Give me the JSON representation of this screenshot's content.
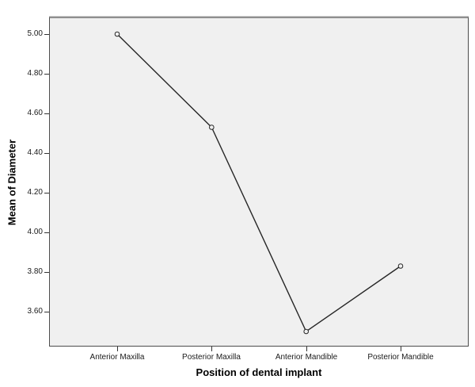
{
  "chart_data": {
    "type": "line",
    "title": "",
    "xlabel": "Position of dental implant",
    "ylabel": "Mean of Diameter",
    "categories": [
      "Anterior Maxilla",
      "Posterior Maxilla",
      "Anterior Mandible",
      "Posterior Mandible"
    ],
    "values": [
      5.0,
      4.53,
      3.5,
      3.83
    ],
    "ytick_labels": [
      "5.00",
      "4.80",
      "4.60",
      "4.40",
      "4.20",
      "4.00",
      "3.80",
      "3.60"
    ],
    "ytick_values": [
      5.0,
      4.8,
      4.6,
      4.4,
      4.2,
      4.0,
      3.8,
      3.6
    ],
    "ylim": [
      3.428,
      5.08
    ],
    "grid": false,
    "legend": "none",
    "colors": {
      "plot_bg": "#f0f0f0",
      "line": "#262626",
      "marker_stroke": "#262626",
      "marker_fill": "#f0f0f0",
      "frame": "#4d4d4d",
      "tick": "#333333",
      "text": "#1a1a1a"
    }
  }
}
